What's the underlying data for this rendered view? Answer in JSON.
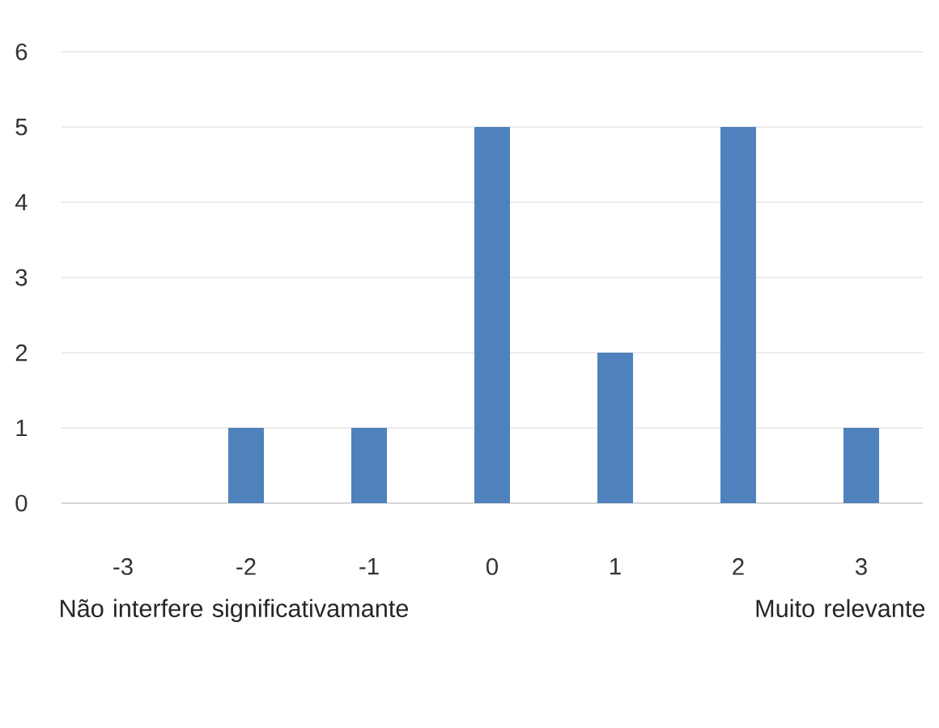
{
  "chart_data": {
    "type": "bar",
    "categories": [
      "-3",
      "-2",
      "-1",
      "0",
      "1",
      "2",
      "3"
    ],
    "values": [
      0,
      1,
      1,
      5,
      2,
      5,
      1
    ],
    "color": "#4f81bd",
    "ylim": [
      0,
      6
    ],
    "yticks": [
      0,
      1,
      2,
      3,
      4,
      5,
      6
    ],
    "grid": "y",
    "annotations": [
      "Não interfere significativamante",
      "Muito relevante"
    ]
  }
}
